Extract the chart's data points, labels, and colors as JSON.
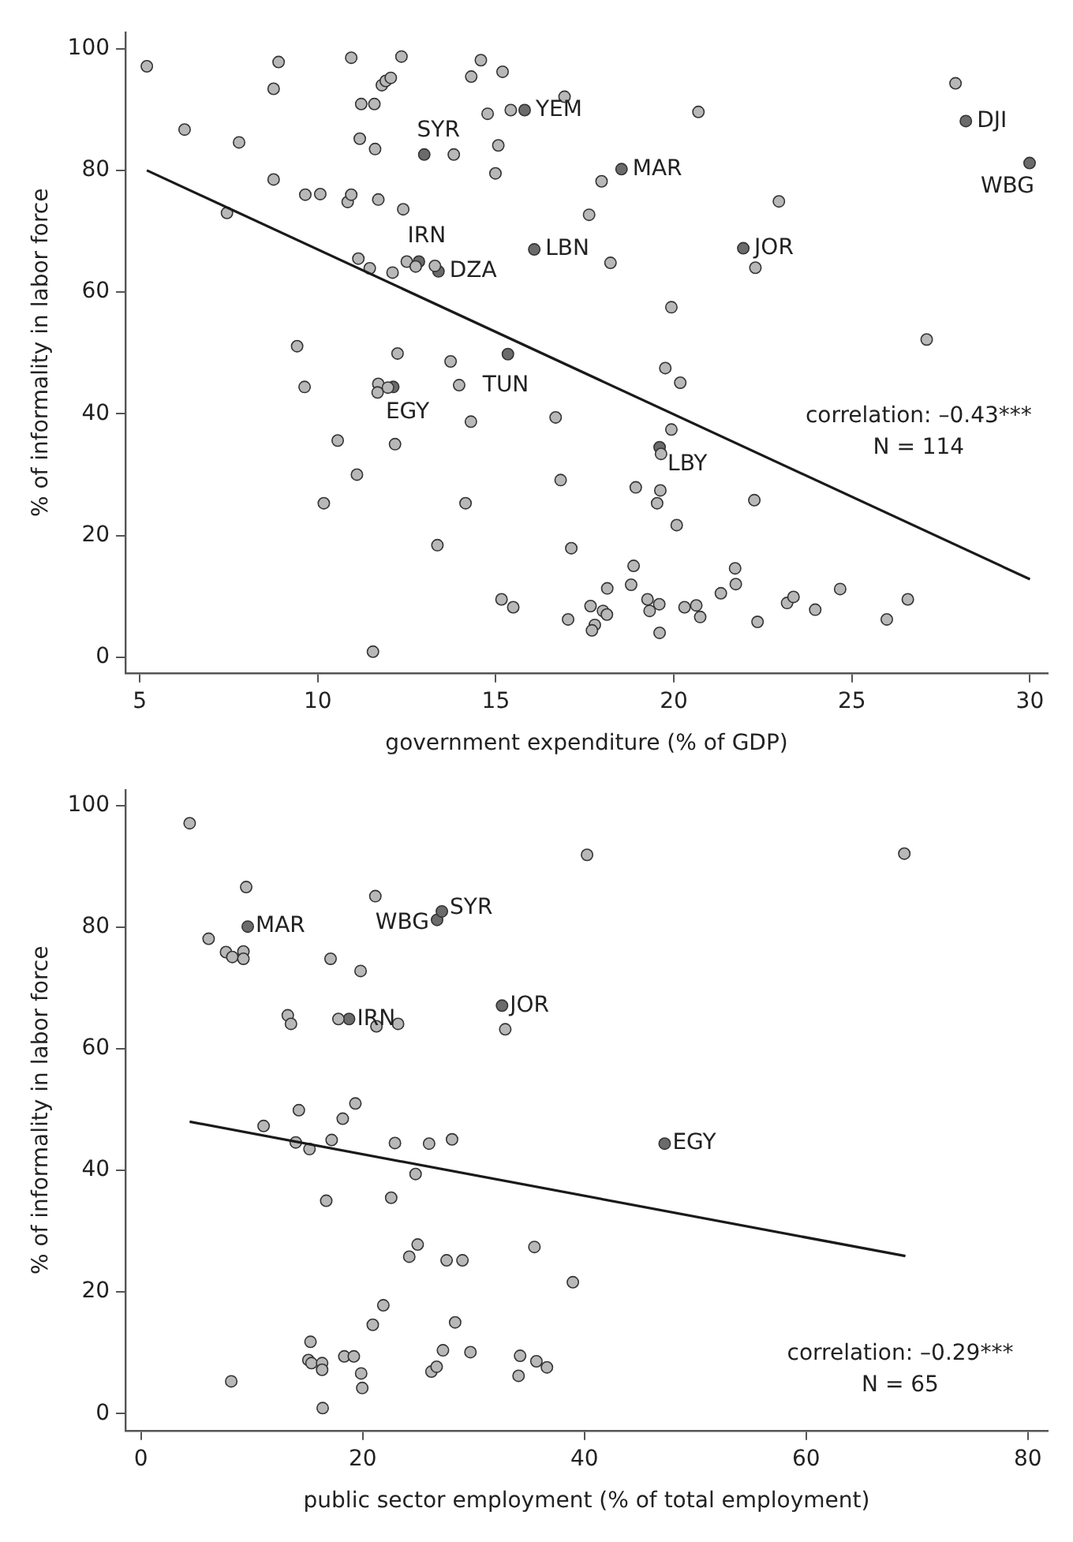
{
  "chart_data": [
    {
      "type": "scatter",
      "xlabel": "government expenditure (% of GDP)",
      "ylabel": "% of informality in labor force",
      "xlim": [
        4.6,
        30.5
      ],
      "ylim": [
        -2.6,
        102.7
      ],
      "xticks": [
        5,
        10,
        15,
        20,
        25,
        30
      ],
      "yticks": [
        0,
        20,
        40,
        60,
        80,
        100
      ],
      "grid": false,
      "legend": false,
      "marker": "circle",
      "series": [
        {
          "color": "#b8b8b8",
          "x": [
            5.2,
            6.26,
            7.79,
            8.76,
            8.9,
            8.76,
            7.45,
            9.65,
            10.07,
            10.84,
            10.94,
            11.7,
            12.4,
            10.94,
            12.35,
            11.22,
            11.59,
            11.8,
            11.91,
            12.05,
            11.18,
            11.61,
            13.82,
            14.58,
            14.31,
            15.19,
            14.77,
            15.42,
            15.07,
            14.99,
            11.14,
            11.46,
            12.1,
            12.5,
            12.75,
            13.29,
            9.42,
            12.24,
            13.73,
            16.93,
            20.69,
            17.97,
            17.62,
            18.22,
            22.95,
            22.29,
            19.93,
            27.1,
            27.91,
            9.63,
            11.7,
            11.68,
            11.97,
            12.17,
            10.56,
            11.1,
            10.17,
            13.36,
            13.97,
            14.3,
            14.15,
            15.16,
            15.49,
            11.55,
            16.68,
            16.82,
            19.76,
            20.18,
            19.93,
            19.64,
            18.93,
            19.62,
            19.53,
            20.08,
            22.26,
            17.12,
            18.87,
            18.8,
            18.13,
            21.72,
            21.74,
            21.32,
            17.66,
            17.03,
            18.01,
            18.12,
            17.78,
            17.7,
            19.26,
            19.32,
            19.59,
            19.6,
            20.3,
            20.63,
            20.74,
            22.35,
            23.18,
            23.36,
            23.97,
            24.67,
            25.98,
            26.57
          ],
          "values": [
            97.1,
            86.7,
            84.6,
            93.4,
            97.8,
            78.5,
            73.0,
            76.0,
            76.1,
            74.8,
            76.0,
            75.2,
            73.6,
            98.5,
            98.7,
            90.9,
            90.9,
            94.0,
            94.7,
            95.2,
            85.2,
            83.5,
            82.6,
            98.1,
            95.4,
            96.2,
            89.3,
            89.9,
            84.1,
            79.5,
            65.5,
            63.9,
            63.2,
            65.0,
            64.2,
            64.3,
            51.1,
            49.9,
            48.6,
            92.1,
            89.6,
            78.2,
            72.7,
            64.8,
            74.9,
            64.0,
            57.5,
            52.2,
            94.3,
            44.4,
            44.9,
            43.5,
            44.3,
            35.0,
            35.6,
            30.0,
            25.3,
            18.4,
            44.7,
            38.7,
            25.3,
            9.5,
            8.2,
            0.9,
            39.4,
            29.1,
            47.5,
            45.1,
            37.4,
            33.4,
            27.9,
            27.4,
            25.3,
            21.7,
            25.8,
            17.9,
            15.0,
            11.9,
            11.3,
            14.6,
            12.0,
            10.5,
            8.4,
            6.2,
            7.6,
            7.0,
            5.3,
            4.4,
            9.5,
            7.6,
            8.7,
            4.0,
            8.2,
            8.5,
            6.6,
            5.8,
            8.9,
            9.9,
            7.8,
            11.2,
            6.2,
            9.5
          ]
        },
        {
          "color": "#6b6b6b",
          "x": [
            12.99,
            15.81,
            18.53,
            12.84,
            13.39,
            16.08,
            21.95,
            28.2,
            29.99,
            15.34,
            12.12,
            19.6
          ],
          "values": [
            82.6,
            89.9,
            80.2,
            65.0,
            63.4,
            67.0,
            67.2,
            88.1,
            81.2,
            49.8,
            44.4,
            34.5
          ]
        },
        {
          "type": "line",
          "marker": "none",
          "color": "#1a1a1a",
          "x": [
            5.2,
            30.0
          ],
          "values": [
            80.0,
            12.8
          ]
        }
      ],
      "annotations": [
        {
          "text": "SYR",
          "x": 12.99,
          "y": 82.6
        },
        {
          "text": "YEM",
          "x": 15.81,
          "y": 89.9
        },
        {
          "text": "MAR",
          "x": 18.53,
          "y": 80.2
        },
        {
          "text": "IRN",
          "x": 12.84,
          "y": 65.0
        },
        {
          "text": "DZA",
          "x": 13.39,
          "y": 63.4
        },
        {
          "text": "LBN",
          "x": 16.08,
          "y": 67.0
        },
        {
          "text": "JOR",
          "x": 21.95,
          "y": 67.2
        },
        {
          "text": "DJI",
          "x": 28.2,
          "y": 88.1
        },
        {
          "text": "WBG",
          "x": 29.99,
          "y": 81.2
        },
        {
          "text": "TUN",
          "x": 15.34,
          "y": 49.8
        },
        {
          "text": "EGY",
          "x": 12.12,
          "y": 44.4
        },
        {
          "text": "LBY",
          "x": 19.6,
          "y": 34.5
        },
        "correlation: –0.43***",
        "N = 114"
      ]
    },
    {
      "type": "scatter",
      "xlabel": "public sector employment (% of total employment)",
      "ylabel": "% of informality in labor force",
      "xlim": [
        -1.4,
        81.8
      ],
      "ylim": [
        -2.8,
        102.6
      ],
      "xticks": [
        0,
        20,
        40,
        60,
        80
      ],
      "yticks": [
        0,
        20,
        40,
        60,
        80,
        100
      ],
      "grid": false,
      "legend": false,
      "marker": "circle",
      "series": [
        {
          "color": "#b8b8b8",
          "x": [
            4.39,
            9.49,
            6.1,
            7.67,
            8.24,
            9.24,
            9.24,
            21.14,
            17.1,
            19.81,
            13.24,
            13.53,
            17.81,
            21.24,
            23.19,
            32.86,
            19.34,
            14.24,
            18.2,
            11.06,
            13.96,
            15.2,
            17.2,
            22.91,
            25.99,
            28.06,
            24.77,
            22.57,
            16.71,
            24.96,
            24.2,
            27.57,
            29.0,
            35.49,
            21.86,
            20.91,
            28.34,
            15.29,
            15.1,
            15.38,
            16.34,
            16.34,
            18.34,
            19.2,
            19.86,
            19.96,
            16.39,
            8.14,
            27.24,
            29.72,
            26.2,
            26.67,
            34.2,
            34.06,
            35.67,
            36.62,
            40.24,
            68.86,
            38.96
          ],
          "values": [
            97.1,
            86.6,
            78.1,
            75.9,
            75.1,
            76.0,
            74.8,
            85.1,
            74.8,
            72.8,
            65.5,
            64.1,
            64.9,
            63.7,
            64.1,
            63.2,
            51.0,
            49.9,
            48.5,
            47.3,
            44.6,
            43.5,
            45.0,
            44.5,
            44.4,
            45.1,
            39.4,
            35.5,
            35.0,
            27.8,
            25.8,
            25.2,
            25.2,
            27.4,
            17.8,
            14.6,
            15.0,
            11.8,
            8.8,
            8.3,
            8.3,
            7.2,
            9.4,
            9.4,
            6.6,
            4.2,
            0.9,
            5.3,
            10.4,
            10.1,
            6.9,
            7.7,
            9.5,
            6.2,
            8.6,
            7.6,
            91.9,
            92.1,
            21.6
          ]
        },
        {
          "color": "#6b6b6b",
          "x": [
            9.63,
            26.71,
            27.14,
            18.77,
            32.57,
            47.24
          ],
          "values": [
            80.1,
            81.2,
            82.6,
            64.9,
            67.1,
            44.4
          ]
        },
        {
          "type": "line",
          "marker": "none",
          "color": "#1a1a1a",
          "x": [
            4.39,
            68.96
          ],
          "values": [
            48.0,
            25.9
          ]
        }
      ],
      "annotations": [
        {
          "text": "MAR",
          "x": 9.63,
          "y": 80.1
        },
        {
          "text": "WBG",
          "x": 26.71,
          "y": 81.2
        },
        {
          "text": "SYR",
          "x": 27.14,
          "y": 82.6
        },
        {
          "text": "IRN",
          "x": 18.77,
          "y": 64.9
        },
        {
          "text": "JOR",
          "x": 32.57,
          "y": 67.1
        },
        {
          "text": "EGY",
          "x": 47.24,
          "y": 44.4
        },
        "correlation: –0.29***",
        "N = 65"
      ]
    }
  ]
}
